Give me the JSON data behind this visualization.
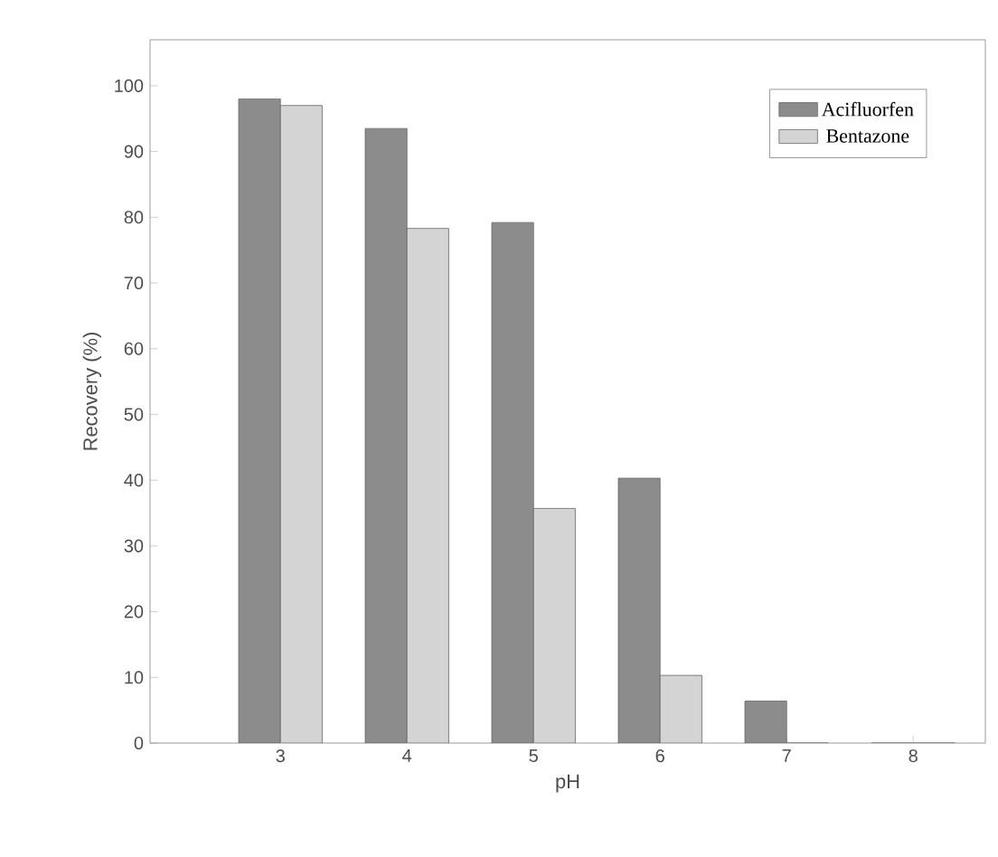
{
  "chart_data": {
    "type": "bar",
    "xlabel": "pH",
    "ylabel": "Recovery (%)",
    "categories": [
      "3",
      "4",
      "5",
      "6",
      "7",
      "8"
    ],
    "series": [
      {
        "name": "Acifluorfen",
        "color": "#8c8c8c",
        "values": [
          98,
          93.5,
          79.2,
          40.3,
          6.4,
          0
        ]
      },
      {
        "name": "Bentazone",
        "color": "#d4d4d4",
        "values": [
          97,
          78.3,
          35.7,
          10.3,
          0,
          0
        ]
      }
    ],
    "ylim": [
      0,
      107
    ],
    "yticks": [
      0,
      10,
      20,
      30,
      40,
      50,
      60,
      70,
      80,
      90,
      100
    ],
    "legend": "top right",
    "grid": false
  }
}
